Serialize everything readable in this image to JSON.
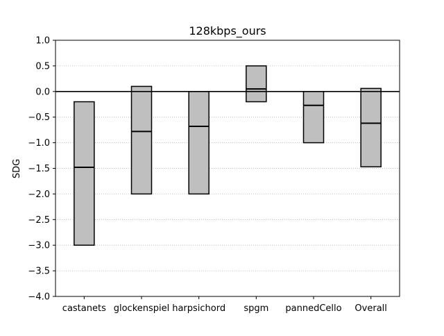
{
  "chart_data": {
    "type": "box",
    "title": "128kbps_ours",
    "xlabel": "",
    "ylabel": "SDG",
    "ylim": [
      -4.0,
      1.0
    ],
    "yticks": [
      1.0,
      0.5,
      0.0,
      -0.5,
      -1.0,
      -1.5,
      -2.0,
      -2.5,
      -3.0,
      -3.5,
      -4.0
    ],
    "ytick_labels": [
      "1.0",
      "0.5",
      "0.0",
      "−0.5",
      "−1.0",
      "−1.5",
      "−2.0",
      "−2.5",
      "−3.0",
      "−3.5",
      "−4.0"
    ],
    "grid": "horizontal dotted",
    "reference_line": 0.0,
    "categories": [
      "castanets",
      "glockenspiel",
      "harpsichord",
      "spgm",
      "pannedCello",
      "Overall"
    ],
    "boxes": [
      {
        "category": "castanets",
        "low": -3.0,
        "median": -1.48,
        "high": -0.2
      },
      {
        "category": "glockenspiel",
        "low": -2.0,
        "median": -0.78,
        "high": 0.1
      },
      {
        "category": "harpsichord",
        "low": -2.0,
        "median": -0.68,
        "high": 0.0
      },
      {
        "category": "spgm",
        "low": -0.2,
        "median": 0.05,
        "high": 0.5
      },
      {
        "category": "pannedCello",
        "low": -1.0,
        "median": -0.27,
        "high": 0.0
      },
      {
        "category": "Overall",
        "low": -1.47,
        "median": -0.62,
        "high": 0.06
      }
    ],
    "colors": {
      "box_fill": "#bfbfbf",
      "box_edge": "#000000",
      "grid": "#b0b0b0"
    }
  }
}
